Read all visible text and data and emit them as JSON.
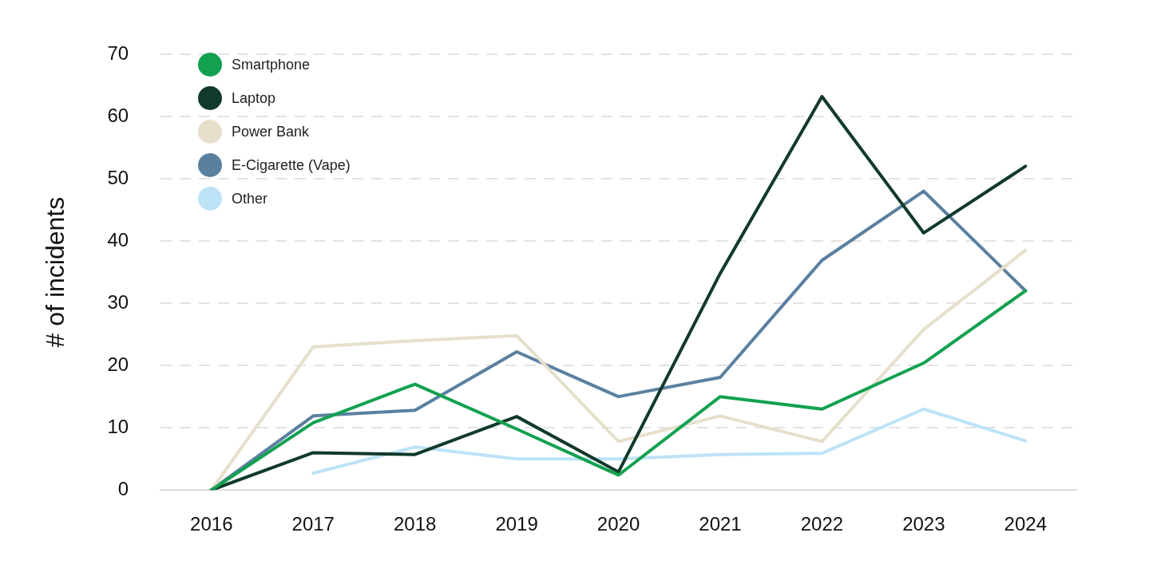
{
  "chart_data": {
    "type": "line",
    "ylabel": "# of incidents",
    "categories": [
      "2016",
      "2017",
      "2018",
      "2019",
      "2020",
      "2021",
      "2022",
      "2023",
      "2024"
    ],
    "series": [
      {
        "name": "Smartphone",
        "color": "#12a150",
        "values": [
          0,
          10.8,
          17,
          9.8,
          2.4,
          15,
          13,
          20.4,
          32
        ]
      },
      {
        "name": "Laptop",
        "color": "#113a2a",
        "values": [
          0,
          6,
          5.7,
          11.8,
          2.9,
          34.8,
          63.2,
          41.3,
          52
        ]
      },
      {
        "name": "Power Bank",
        "color": "#e6dfcc",
        "values": [
          0,
          23,
          24,
          24.8,
          7.8,
          11.9,
          7.8,
          25.8,
          38.5
        ]
      },
      {
        "name": "E-Cigarette (Vape)",
        "color": "#5a80a0",
        "values": [
          0,
          11.9,
          12.8,
          22.2,
          15,
          18.1,
          36.9,
          48,
          32
        ]
      },
      {
        "name": "Other",
        "color": "#bde3f7",
        "values": [
          null,
          2.7,
          6.9,
          5,
          5,
          5.7,
          5.9,
          13,
          7.9
        ]
      }
    ],
    "ylim": [
      0,
      70
    ],
    "yticks": [
      0,
      10,
      20,
      30,
      40,
      50,
      60,
      70
    ],
    "grid": "y",
    "legend": "top left",
    "marker": "none",
    "line_style": "solid"
  }
}
